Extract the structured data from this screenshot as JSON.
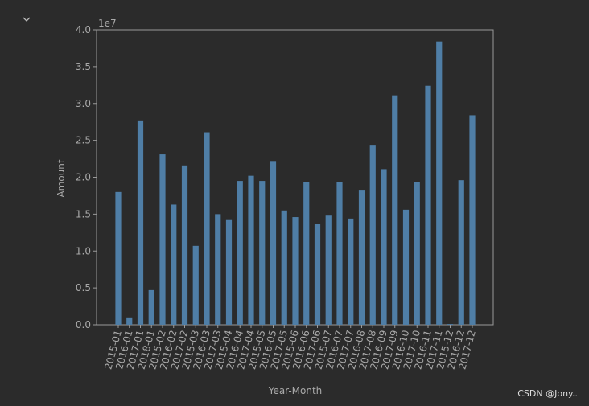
{
  "chart_data": {
    "type": "bar",
    "y_label": "Amount",
    "x_label": "Year-Month",
    "offset_text": "1e7",
    "watermark": "CSDN @Jony..",
    "categories": [
      "2015-01",
      "2016-01",
      "2017-01",
      "2018-01",
      "2015-02",
      "2016-02",
      "2017-02",
      "2015-03",
      "2016-03",
      "2017-03",
      "2015-04",
      "2016-04",
      "2017-04",
      "2015-05",
      "2016-05",
      "2017-05",
      "2015-06",
      "2016-06",
      "2017-06",
      "2015-07",
      "2016-07",
      "2017-07",
      "2016-08",
      "2017-08",
      "2016-09",
      "2017-09",
      "2016-10",
      "2017-10",
      "2016-11",
      "2017-11",
      "2015-12",
      "2016-12",
      "2017-12"
    ],
    "values": [
      1.8,
      0.1,
      2.77,
      0.47,
      2.31,
      1.63,
      2.16,
      1.07,
      2.61,
      1.5,
      1.42,
      1.95,
      2.02,
      1.95,
      2.22,
      1.55,
      1.46,
      1.93,
      1.37,
      1.48,
      1.93,
      1.44,
      1.83,
      2.44,
      2.11,
      3.11,
      1.56,
      1.93,
      3.24,
      3.84,
      0.01,
      1.96,
      2.84
    ],
    "color": "#4f7ea6",
    "ylim": [
      0,
      4
    ],
    "yticks": [
      {
        "value": 0,
        "label": "0.0"
      },
      {
        "value": 0.5,
        "label": "0.5"
      },
      {
        "value": 1,
        "label": "1.0"
      },
      {
        "value": 1.5,
        "label": "1.5"
      },
      {
        "value": 2,
        "label": "2.0"
      },
      {
        "value": 2.5,
        "label": "2.5"
      },
      {
        "value": 3,
        "label": "3.0"
      },
      {
        "value": 3.5,
        "label": "3.5"
      },
      {
        "value": 4,
        "label": "4.0"
      }
    ]
  }
}
